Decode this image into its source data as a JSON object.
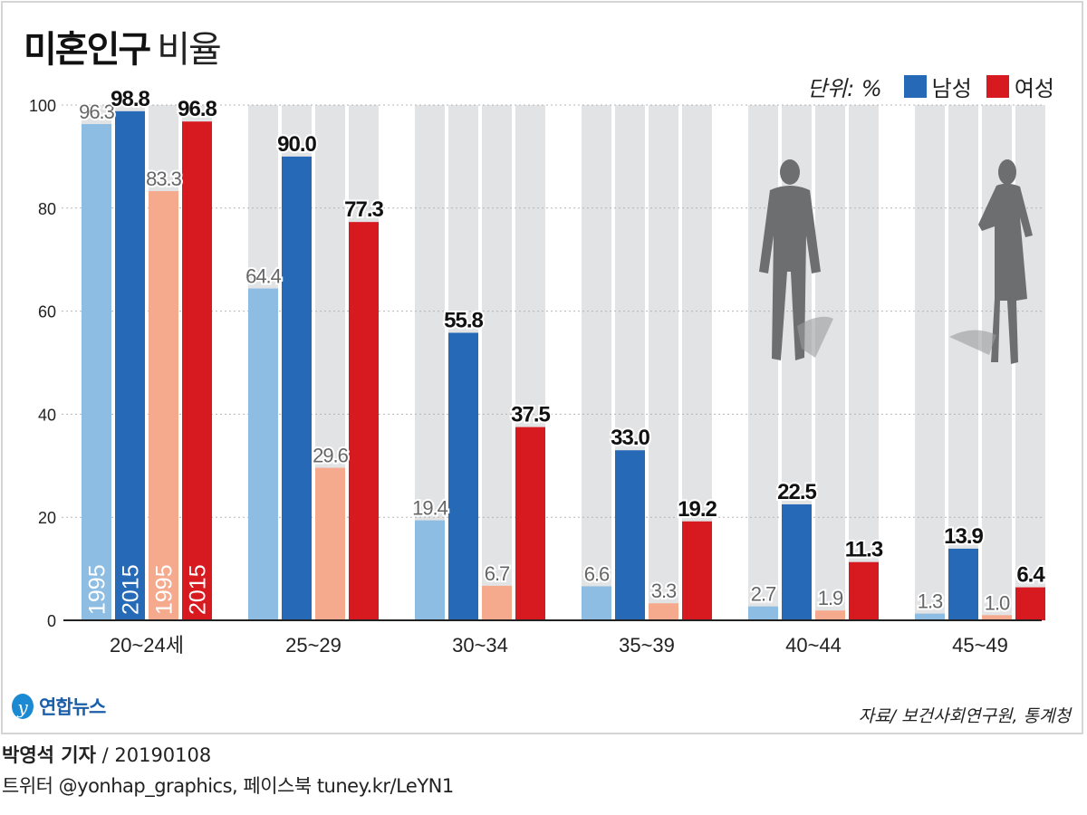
{
  "title": {
    "bold": "미혼인구",
    "regular": "비율"
  },
  "legend": {
    "unit": "단위: %",
    "items": [
      {
        "label": "남성",
        "color": "#2569b7"
      },
      {
        "label": "여성",
        "color": "#d71920"
      }
    ]
  },
  "source": "자료/ 보건사회연구원, 통계청",
  "logo_text": "연합뉴스",
  "byline": {
    "author": "박영석 기자",
    "date": "/ 20190108"
  },
  "social": "트위터 @yonhap_graphics, 페이스북 tuney.kr/LeYN1",
  "chart_data": {
    "type": "bar",
    "categories": [
      "20~24세",
      "25~29",
      "30~34",
      "35~39",
      "40~44",
      "45~49"
    ],
    "series": [
      {
        "name": "1995",
        "group": "남성",
        "color": "#8dbde2",
        "values": [
          96.3,
          64.4,
          19.4,
          6.6,
          2.7,
          1.3
        ]
      },
      {
        "name": "2015",
        "group": "남성",
        "color": "#2569b7",
        "values": [
          98.8,
          90.0,
          55.8,
          33.0,
          22.5,
          13.9
        ]
      },
      {
        "name": "1995",
        "group": "여성",
        "color": "#f5aa8e",
        "values": [
          83.3,
          29.6,
          6.7,
          3.3,
          1.9,
          1.0
        ]
      },
      {
        "name": "2015",
        "group": "여성",
        "color": "#d71920",
        "values": [
          96.8,
          77.3,
          37.5,
          19.2,
          11.3,
          6.4
        ]
      }
    ],
    "ylim": [
      0,
      100
    ],
    "yticks": [
      0,
      20,
      40,
      60,
      80,
      100
    ],
    "grid": true,
    "legend_position": "top-right",
    "unit": "%"
  }
}
